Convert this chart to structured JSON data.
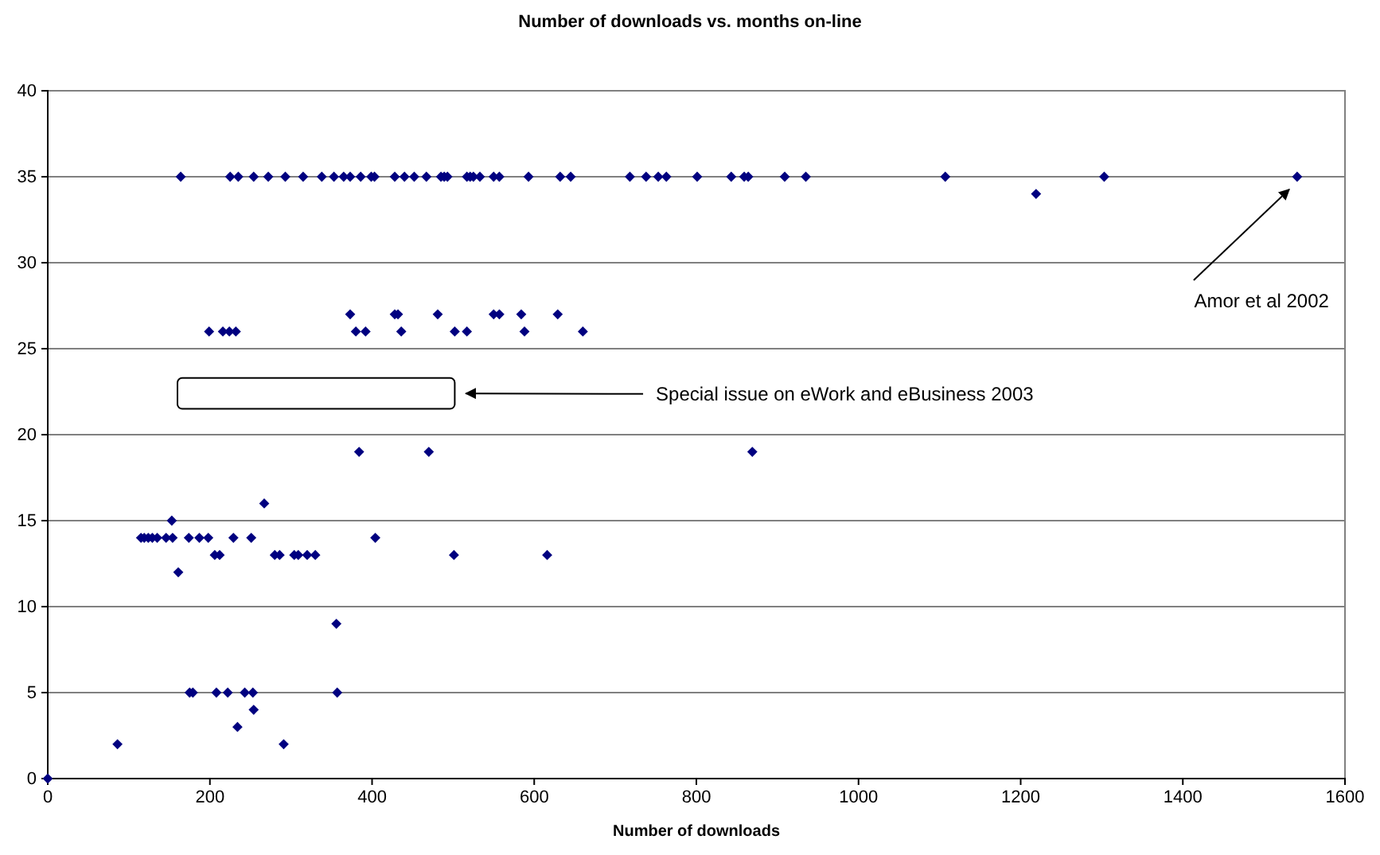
{
  "chart_data": {
    "type": "scatter",
    "title": "Number of downloads vs. months on-line",
    "xlabel": "Number of downloads",
    "xlim": [
      0,
      1600
    ],
    "xticks": [
      0,
      200,
      400,
      600,
      800,
      1000,
      1200,
      1400,
      1600
    ],
    "ylim": [
      0,
      40
    ],
    "yticks": [
      0,
      5,
      10,
      15,
      20,
      25,
      30,
      35,
      40
    ],
    "grid": "y",
    "marker": "diamond",
    "series": [
      {
        "color": "#000080",
        "x": [
          164,
          225,
          235,
          254,
          272,
          293,
          315,
          338,
          353,
          365,
          373,
          386,
          399,
          403,
          428,
          440,
          452,
          467,
          485,
          489,
          493,
          517,
          521,
          525,
          533,
          550,
          557,
          593,
          632,
          645,
          718,
          738,
          753,
          763,
          801,
          843,
          859,
          864,
          909,
          935,
          1107,
          1303,
          1541,
          1219,
          373,
          428,
          432,
          481,
          550,
          557,
          584,
          629,
          199,
          216,
          224,
          232,
          380,
          392,
          436,
          502,
          517,
          588,
          660,
          384,
          470,
          869,
          267,
          153,
          115,
          119,
          124,
          129,
          135,
          146,
          154,
          174,
          187,
          198,
          229,
          251,
          404,
          161,
          206,
          212,
          280,
          286,
          304,
          309,
          320,
          330,
          501,
          616,
          356,
          175,
          179,
          208,
          222,
          243,
          253,
          357,
          254,
          234,
          86,
          291,
          0
        ],
        "values": [
          35,
          35,
          35,
          35,
          35,
          35,
          35,
          35,
          35,
          35,
          35,
          35,
          35,
          35,
          35,
          35,
          35,
          35,
          35,
          35,
          35,
          35,
          35,
          35,
          35,
          35,
          35,
          35,
          35,
          35,
          35,
          35,
          35,
          35,
          35,
          35,
          35,
          35,
          35,
          35,
          35,
          35,
          35,
          34,
          27,
          27,
          27,
          27,
          27,
          27,
          27,
          27,
          26,
          26,
          26,
          26,
          26,
          26,
          26,
          26,
          26,
          26,
          26,
          19,
          19,
          19,
          16,
          15,
          14,
          14,
          14,
          14,
          14,
          14,
          14,
          14,
          14,
          14,
          14,
          14,
          14,
          12,
          13,
          13,
          13,
          13,
          13,
          13,
          13,
          13,
          13,
          13,
          9,
          5,
          5,
          5,
          5,
          5,
          5,
          5,
          4,
          3,
          2,
          2,
          0
        ]
      }
    ],
    "annotations": [
      "Special issue on eWork and eBusiness 2003",
      "Amor et al 2002"
    ]
  }
}
